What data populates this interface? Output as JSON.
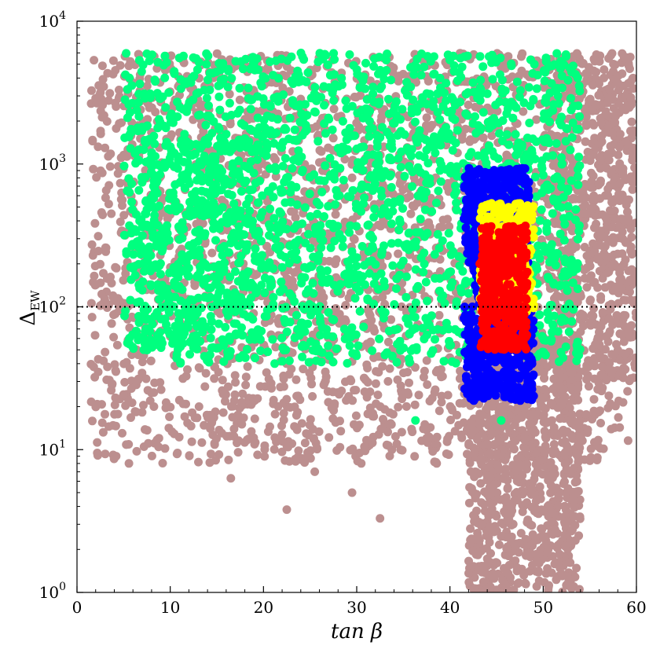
{
  "chart_data": {
    "type": "scatter",
    "title": "",
    "xlabel": "tan β",
    "ylabel_main": "Δ",
    "ylabel_sub": "EW",
    "xlim": [
      0,
      60
    ],
    "ylim": [
      1,
      10000
    ],
    "yscale": "log",
    "xticks": [
      {
        "value": 0,
        "label": "0"
      },
      {
        "value": 10,
        "label": "10"
      },
      {
        "value": 20,
        "label": "20"
      },
      {
        "value": 30,
        "label": "30"
      },
      {
        "value": 40,
        "label": "40"
      },
      {
        "value": 50,
        "label": "50"
      },
      {
        "value": 60,
        "label": "60"
      }
    ],
    "yticks": [
      {
        "value": 1,
        "base": "10",
        "exp": "0"
      },
      {
        "value": 10,
        "base": "10",
        "exp": "1"
      },
      {
        "value": 100,
        "base": "10",
        "exp": "2"
      },
      {
        "value": 1000,
        "base": "10",
        "exp": "3"
      },
      {
        "value": 10000,
        "base": "10",
        "exp": "4"
      }
    ],
    "reference_line": {
      "y": 100,
      "style": "dotted",
      "color": "#000000"
    },
    "grid": false,
    "legend": "none",
    "series": [
      {
        "color": "#bc8f8f",
        "regions": [
          {
            "x": [
              1.5,
              59.5
            ],
            "y": [
              8,
              6000
            ],
            "n": 2600
          },
          {
            "x": [
              42,
              54
            ],
            "y": [
              1,
              60
            ],
            "n": 900
          },
          {
            "x": [
              51,
              60
            ],
            "y": [
              30,
              6000
            ],
            "n": 500
          }
        ],
        "points": [
          {
            "x": 4.2,
            "y": 9
          },
          {
            "x": 16.5,
            "y": 6.3
          },
          {
            "x": 22.5,
            "y": 3.8
          },
          {
            "x": 32.5,
            "y": 3.3
          },
          {
            "x": 29.5,
            "y": 5
          },
          {
            "x": 25.5,
            "y": 7
          }
        ]
      },
      {
        "color": "#00ff7f",
        "regions": [
          {
            "x": [
              5,
              54
            ],
            "y": [
              40,
              6000
            ],
            "n": 1900
          },
          {
            "x": [
              7,
              18
            ],
            "y": [
              50,
              1500
            ],
            "n": 250
          }
        ],
        "points": [
          {
            "x": 36.3,
            "y": 16
          },
          {
            "x": 45.5,
            "y": 16
          }
        ]
      },
      {
        "color": "#0000ff",
        "regions": [
          {
            "x": [
              41.5,
              48.5
            ],
            "y": [
              200,
              950
            ],
            "n": 380
          },
          {
            "x": [
              41.5,
              49
            ],
            "y": [
              22,
              100
            ],
            "n": 380
          },
          {
            "x": [
              42.5,
              48
            ],
            "y": [
              100,
              200
            ],
            "n": 120
          }
        ],
        "points": []
      },
      {
        "color": "#ffff00",
        "regions": [
          {
            "x": [
              43.2,
              49
            ],
            "y": [
              90,
              530
            ],
            "n": 300
          }
        ],
        "points": []
      },
      {
        "color": "#ff0000",
        "regions": [
          {
            "x": [
              43.3,
              48.3
            ],
            "y": [
              50,
              370
            ],
            "n": 450
          }
        ],
        "points": [
          {
            "x": 43.5,
            "y": 300
          },
          {
            "x": 43.2,
            "y": 200
          }
        ]
      }
    ]
  }
}
